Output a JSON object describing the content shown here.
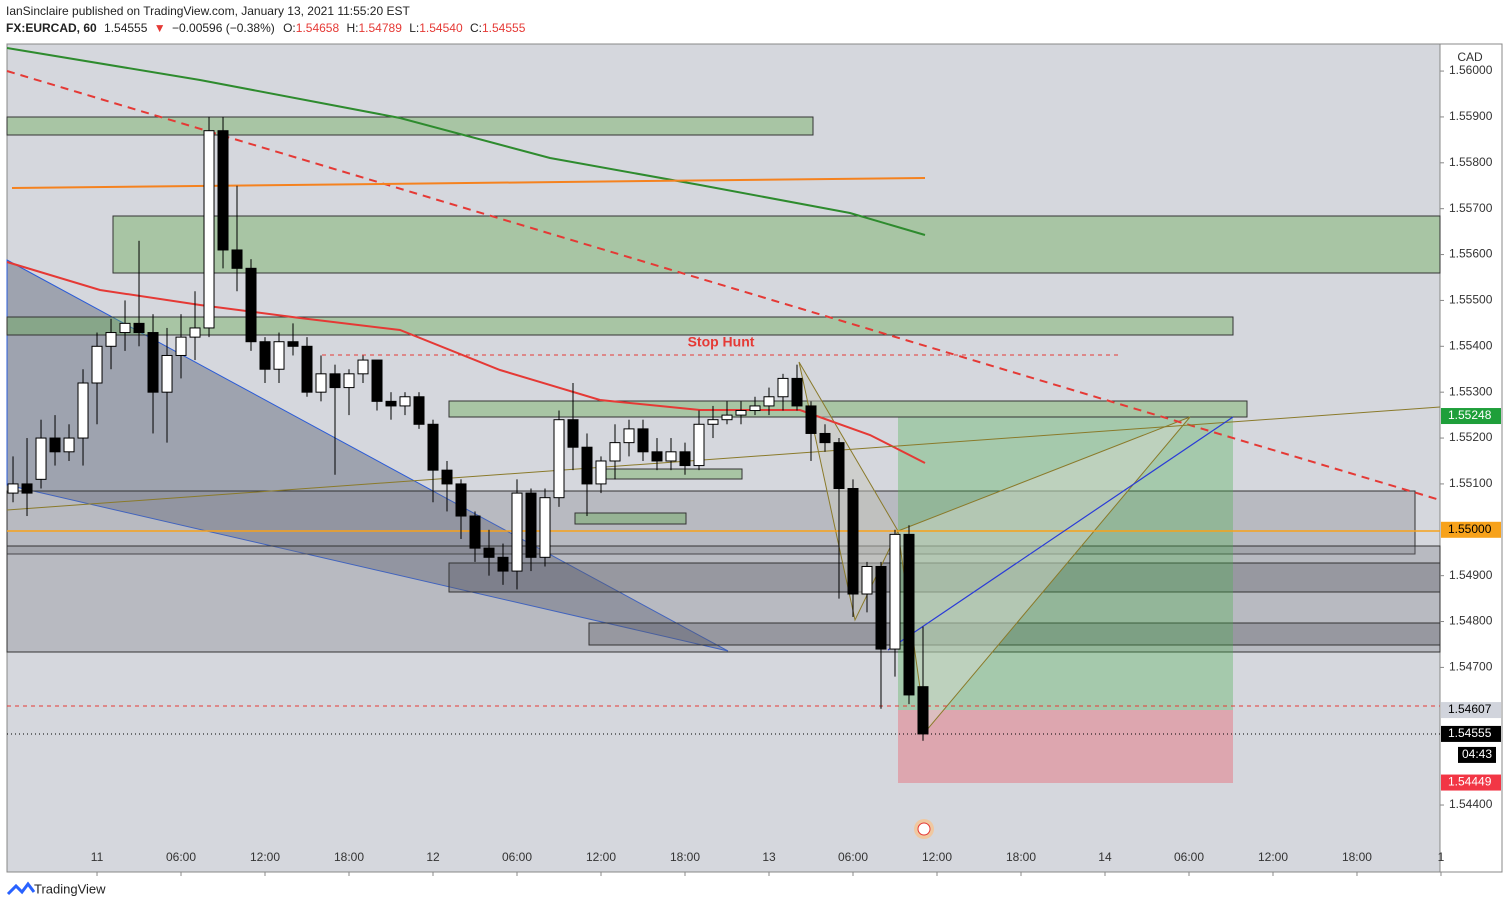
{
  "header": {
    "publisher": "IanSinclaire published on TradingView.com, January 13, 2021 11:55:20 EST",
    "symbol": "FX:EURCAD, 60",
    "last": "1.54555",
    "arrow": "▼",
    "change": "−0.00596 (−0.38%)",
    "o_label": "O:",
    "o": "1.54658",
    "h_label": "H:",
    "h": "1.54789",
    "l_label": "L:",
    "l": "1.54540",
    "c_label": "C:",
    "c": "1.54555"
  },
  "footer": {
    "brand": "TradingView"
  },
  "chart_data": {
    "type": "candlestick",
    "currency": "CAD",
    "annotation": "Stop Hunt",
    "countdown": "04:43",
    "up_color": "#ffffff",
    "down_color": "#000000",
    "x": [
      -6,
      -5,
      -4,
      -3,
      -2,
      -1,
      0,
      1,
      2,
      3,
      4,
      5,
      6,
      7,
      8,
      9,
      10,
      11,
      12,
      13,
      14,
      15,
      16,
      17,
      18,
      19,
      20,
      21,
      22,
      23,
      24,
      25,
      26,
      27,
      28,
      29,
      30,
      31,
      32,
      33,
      34,
      35,
      36,
      37,
      38,
      39,
      40,
      41,
      42,
      43,
      44,
      45,
      46,
      47,
      48,
      49,
      50,
      51,
      52,
      53,
      54,
      55,
      56,
      57,
      58,
      59
    ],
    "open": [
      1.5508,
      1.551,
      1.5511,
      1.552,
      1.5517,
      1.552,
      1.5532,
      1.554,
      1.5543,
      1.5545,
      1.5543,
      1.553,
      1.5538,
      1.5542,
      1.5544,
      1.5587,
      1.5561,
      1.5557,
      1.5541,
      1.5535,
      1.5541,
      1.554,
      1.553,
      1.5534,
      1.5531,
      1.5534,
      1.5537,
      1.5528,
      1.5527,
      1.5529,
      1.5523,
      1.5513,
      1.551,
      1.5503,
      1.5496,
      1.5494,
      1.5491,
      1.5508,
      1.5494,
      1.5507,
      1.5524,
      1.5518,
      1.551,
      1.5515,
      1.5519,
      1.5522,
      1.5517,
      1.5515,
      1.5517,
      1.5514,
      1.5523,
      1.5524,
      1.5525,
      1.5526,
      1.5527,
      1.5529,
      1.5533,
      1.5527,
      1.5521,
      1.5519,
      1.5509,
      1.5486,
      1.5492,
      1.5474,
      1.5499,
      1.54658
    ],
    "high": [
      1.5516,
      1.552,
      1.5524,
      1.5525,
      1.5523,
      1.5535,
      1.5543,
      1.5546,
      1.555,
      1.5563,
      1.5547,
      1.5544,
      1.5547,
      1.5552,
      1.559,
      1.559,
      1.5575,
      1.5559,
      1.5542,
      1.5543,
      1.5545,
      1.5542,
      1.5538,
      1.5536,
      1.5535,
      1.5538,
      1.5537,
      1.553,
      1.553,
      1.553,
      1.5524,
      1.5515,
      1.5511,
      1.5504,
      1.55,
      1.5497,
      1.5511,
      1.5509,
      1.5509,
      1.5526,
      1.5532,
      1.5521,
      1.5516,
      1.5523,
      1.5524,
      1.5524,
      1.552,
      1.552,
      1.5519,
      1.5526,
      1.5527,
      1.5528,
      1.5528,
      1.5529,
      1.5531,
      1.5534,
      1.5536,
      1.5528,
      1.5523,
      1.552,
      1.5511,
      1.5493,
      1.5493,
      1.55,
      1.5501,
      1.54789
    ],
    "low": [
      1.5506,
      1.5503,
      1.5509,
      1.5514,
      1.5515,
      1.5514,
      1.5523,
      1.5535,
      1.5539,
      1.554,
      1.5521,
      1.5519,
      1.5533,
      1.5537,
      1.5542,
      1.5557,
      1.5552,
      1.5539,
      1.5532,
      1.5532,
      1.5538,
      1.5529,
      1.5528,
      1.5512,
      1.5525,
      1.5532,
      1.5526,
      1.5524,
      1.5525,
      1.5522,
      1.5506,
      1.5504,
      1.5498,
      1.5493,
      1.549,
      1.5488,
      1.5487,
      1.5491,
      1.5492,
      1.5505,
      1.5513,
      1.5503,
      1.5508,
      1.5511,
      1.5516,
      1.5515,
      1.5513,
      1.5513,
      1.5512,
      1.5513,
      1.552,
      1.5523,
      1.5523,
      1.5525,
      1.5525,
      1.5526,
      1.5526,
      1.5515,
      1.5517,
      1.5485,
      1.5481,
      1.5482,
      1.5461,
      1.5468,
      1.5462,
      1.5454
    ],
    "close": [
      1.551,
      1.5508,
      1.552,
      1.5517,
      1.552,
      1.5532,
      1.554,
      1.5543,
      1.5545,
      1.5543,
      1.553,
      1.5538,
      1.5542,
      1.5544,
      1.5587,
      1.5561,
      1.5557,
      1.5541,
      1.5535,
      1.5541,
      1.554,
      1.553,
      1.5534,
      1.5531,
      1.5534,
      1.5537,
      1.5528,
      1.5527,
      1.5529,
      1.5523,
      1.5513,
      1.551,
      1.5503,
      1.5496,
      1.5494,
      1.5491,
      1.5508,
      1.5494,
      1.5507,
      1.5524,
      1.5518,
      1.551,
      1.5515,
      1.5519,
      1.5522,
      1.5517,
      1.5515,
      1.5517,
      1.5514,
      1.5523,
      1.5524,
      1.5525,
      1.5526,
      1.5527,
      1.5529,
      1.5533,
      1.5527,
      1.5521,
      1.5519,
      1.5509,
      1.5486,
      1.5492,
      1.5474,
      1.5499,
      1.5464,
      1.54555
    ],
    "xlim": [
      -6.43,
      95.93
    ],
    "xticks": [
      {
        "value": 0,
        "label": "11"
      },
      {
        "value": 6,
        "label": "06:00"
      },
      {
        "value": 12,
        "label": "12:00"
      },
      {
        "value": 18,
        "label": "18:00"
      },
      {
        "value": 24,
        "label": "12"
      },
      {
        "value": 30,
        "label": "06:00"
      },
      {
        "value": 36,
        "label": "12:00"
      },
      {
        "value": 42,
        "label": "18:00"
      },
      {
        "value": 48,
        "label": "13"
      },
      {
        "value": 54,
        "label": "06:00"
      },
      {
        "value": 60,
        "label": "12:00"
      },
      {
        "value": 66,
        "label": "18:00"
      },
      {
        "value": 72,
        "label": "14"
      },
      {
        "value": 78,
        "label": "06:00"
      },
      {
        "value": 84,
        "label": "12:00"
      },
      {
        "value": 90,
        "label": "18:00"
      },
      {
        "value": 96,
        "label": "1"
      }
    ],
    "ylim": [
      1.54254,
      1.56059
    ],
    "yticks": [
      {
        "value": 1.544,
        "label": "1.54400"
      },
      {
        "value": 1.547,
        "label": "1.54700"
      },
      {
        "value": 1.548,
        "label": "1.54800"
      },
      {
        "value": 1.549,
        "label": "1.54900"
      },
      {
        "value": 1.551,
        "label": "1.55100"
      },
      {
        "value": 1.552,
        "label": "1.55200"
      },
      {
        "value": 1.553,
        "label": "1.55300"
      },
      {
        "value": 1.554,
        "label": "1.55400"
      },
      {
        "value": 1.555,
        "label": "1.55500"
      },
      {
        "value": 1.556,
        "label": "1.55600"
      },
      {
        "value": 1.557,
        "label": "1.55700"
      },
      {
        "value": 1.558,
        "label": "1.55800"
      },
      {
        "value": 1.559,
        "label": "1.55900"
      },
      {
        "value": 1.56,
        "label": "1.56000"
      }
    ],
    "price_labels": [
      {
        "value": 1.55248,
        "label": "1.55248",
        "color": "#1e9f3a",
        "text_color": "#ffffff"
      },
      {
        "value": 1.55,
        "label": "1.55000",
        "color": "#f7a21b",
        "text_color": "#000000"
      },
      {
        "value": 1.54607,
        "label": "1.54607",
        "color": "#d1d4dc",
        "text_color": "#000000"
      },
      {
        "value": 1.54555,
        "label": "1.54555",
        "color": "#000000",
        "text_color": "#ffffff"
      },
      {
        "value": 1.54449,
        "label": "1.54449",
        "color": "#f23645",
        "text_color": "#ffffff"
      }
    ]
  }
}
